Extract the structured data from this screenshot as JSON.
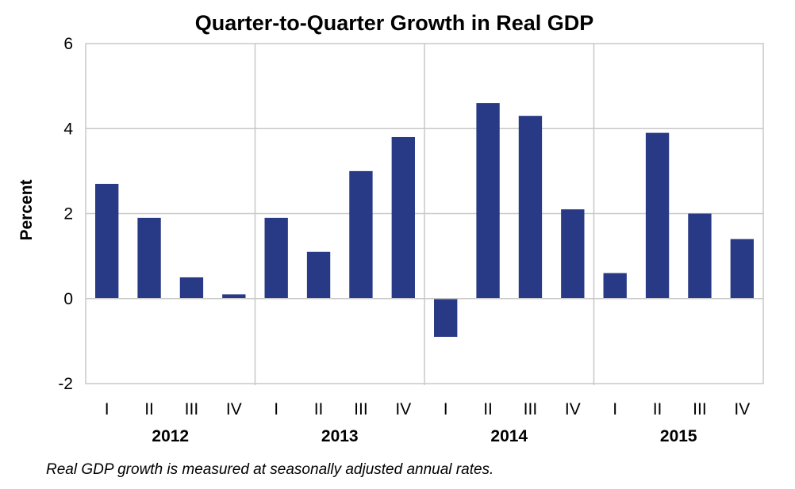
{
  "chart_data": {
    "type": "bar",
    "title": "Quarter-to-Quarter Growth in Real GDP",
    "ylabel": "Percent",
    "ylim": [
      -2,
      6
    ],
    "yticks": [
      6,
      4,
      2,
      0,
      -2
    ],
    "grid": true,
    "legend": "none",
    "bar_color": "#283a85",
    "groups": [
      {
        "label": "2012",
        "categories": [
          "I",
          "II",
          "III",
          "IV"
        ],
        "values": [
          2.7,
          1.9,
          0.5,
          0.1
        ]
      },
      {
        "label": "2013",
        "categories": [
          "I",
          "II",
          "III",
          "IV"
        ],
        "values": [
          1.9,
          1.1,
          3.0,
          3.8
        ]
      },
      {
        "label": "2014",
        "categories": [
          "I",
          "II",
          "III",
          "IV"
        ],
        "values": [
          -0.9,
          4.6,
          4.3,
          2.1
        ]
      },
      {
        "label": "2015",
        "categories": [
          "I",
          "II",
          "III",
          "IV"
        ],
        "values": [
          0.6,
          3.9,
          2.0,
          1.4
        ]
      }
    ],
    "note": "Real GDP growth is measured at seasonally adjusted annual rates."
  }
}
